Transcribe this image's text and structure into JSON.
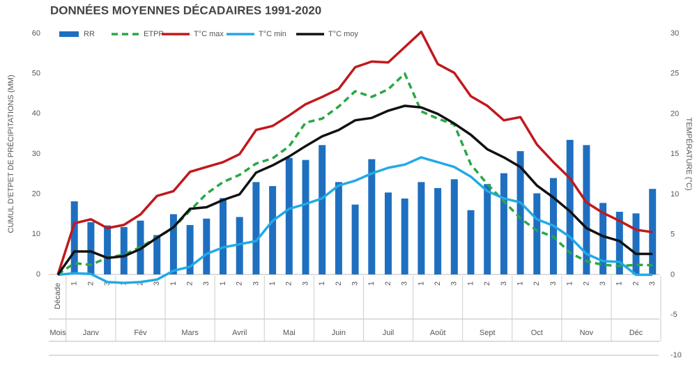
{
  "chart_data": {
    "type": "combo",
    "title": "DONNÉES MOYENNES DÉCADAIRES 1991-2020",
    "y_label": "CUMUL D'ETPET  DE PRÉCIPITATIONS (MM)",
    "y2_label": "TEMPÉRATURE (°C)",
    "categories": [
      "Décade",
      "1",
      "2",
      "3",
      "1",
      "2",
      "3",
      "1",
      "2",
      "3",
      "1",
      "2",
      "3",
      "1",
      "2",
      "3",
      "1",
      "2",
      "3",
      "1",
      "2",
      "3",
      "1",
      "2",
      "3",
      "1",
      "2",
      "3",
      "1",
      "2",
      "3",
      "1",
      "2",
      "3",
      "1",
      "2",
      "3"
    ],
    "months": [
      "Mois",
      "Janv",
      "Fév",
      "Mars",
      "Avril",
      "Mai",
      "Juin",
      "Juil",
      "Août",
      "Sept",
      "Oct",
      "Nov",
      "Déc"
    ],
    "ylim": [
      0,
      60
    ],
    "yticks": [
      0,
      10,
      20,
      30,
      40,
      50,
      60
    ],
    "y2lim": [
      -10,
      30
    ],
    "y2ticks": [
      -10,
      -5,
      0,
      5,
      10,
      15,
      20,
      25,
      30
    ],
    "legend": "top",
    "series": [
      {
        "name": "RR",
        "type": "bar",
        "color": "#1f6fc0",
        "values": [
          null,
          18.2,
          13,
          12.2,
          11.8,
          13.4,
          9.8,
          15,
          12.3,
          13.9,
          19,
          14.3,
          23,
          22,
          29,
          28.5,
          32.2,
          23,
          17.4,
          28.7,
          20.4,
          18.9,
          23,
          21.5,
          23.7,
          16,
          22.5,
          25.2,
          30.7,
          20.2,
          24,
          33.5,
          32.2,
          17.8,
          15.6,
          15.2,
          21.3
        ]
      },
      {
        "name": "ETPP",
        "type": "line",
        "dashed": true,
        "color": "#2aa745",
        "values": [
          0,
          2.8,
          2.4,
          4.2,
          4.9,
          6.8,
          9.2,
          11.6,
          15.9,
          20.1,
          23,
          24.8,
          27.6,
          28.9,
          31.9,
          37.8,
          38.8,
          41.8,
          45.6,
          44.2,
          46.1,
          50,
          40.6,
          38.8,
          37.3,
          27.4,
          22.5,
          18.2,
          14,
          10.9,
          9.4,
          5.4,
          3.3,
          2.4,
          2.1,
          2.4,
          2.3
        ]
      },
      {
        "name": "T°C max",
        "type": "line",
        "axis": "y2",
        "color": "#c0191e",
        "values": [
          0,
          6.4,
          6.9,
          5.8,
          6.2,
          7.5,
          9.8,
          10.4,
          12.8,
          13.4,
          14,
          15,
          18,
          18.5,
          19.8,
          21.2,
          22.1,
          23.1,
          25.8,
          26.5,
          26.4,
          28.3,
          30.2,
          26.2,
          25.1,
          22.2,
          21,
          19.2,
          19.6,
          16.2,
          14,
          12,
          9,
          7.7,
          6.7,
          5.6,
          5.3
        ]
      },
      {
        "name": "T°C min",
        "type": "line",
        "axis": "y2",
        "color": "#22a9e6",
        "values": [
          0,
          0.2,
          0.1,
          -0.9,
          -1,
          -0.9,
          -0.6,
          0.5,
          1,
          2.6,
          3.4,
          3.8,
          4.2,
          6.7,
          8.2,
          8.8,
          9.5,
          11.1,
          11.7,
          12.6,
          13.3,
          13.7,
          14.6,
          14,
          13.4,
          12.2,
          10.4,
          9.5,
          9,
          6.9,
          6.1,
          4.7,
          2.6,
          1.7,
          1.6,
          0,
          0
        ]
      },
      {
        "name": "T°C moy",
        "type": "line",
        "axis": "y2",
        "color": "#111111",
        "values": [
          0,
          2.9,
          2.9,
          2.1,
          2.3,
          3.2,
          4.6,
          5.9,
          8.2,
          8.4,
          9.3,
          10,
          12.7,
          13.6,
          14.7,
          16,
          17.2,
          18,
          19.2,
          19.5,
          20.4,
          21,
          20.8,
          20,
          18.8,
          17.4,
          15.6,
          14.6,
          13.4,
          11.1,
          9.6,
          7.9,
          5.8,
          4.8,
          4.2,
          2.6,
          2.6
        ]
      }
    ]
  }
}
